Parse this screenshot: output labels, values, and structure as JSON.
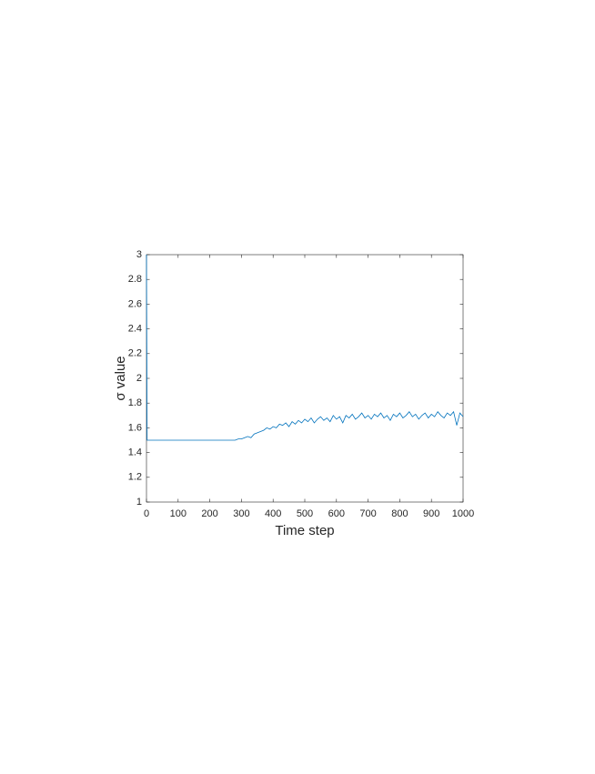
{
  "chart_data": {
    "type": "line",
    "xlabel": "Time step",
    "ylabel": "σ value",
    "x": [
      0,
      2,
      10,
      20,
      30,
      40,
      50,
      60,
      70,
      80,
      90,
      100,
      110,
      120,
      130,
      140,
      150,
      160,
      170,
      180,
      190,
      200,
      210,
      220,
      230,
      240,
      250,
      260,
      270,
      280,
      290,
      300,
      310,
      320,
      330,
      340,
      350,
      360,
      370,
      380,
      390,
      400,
      410,
      420,
      430,
      440,
      450,
      460,
      470,
      480,
      490,
      500,
      510,
      520,
      530,
      540,
      550,
      560,
      570,
      580,
      590,
      600,
      610,
      620,
      630,
      640,
      650,
      660,
      670,
      680,
      690,
      700,
      710,
      720,
      730,
      740,
      750,
      760,
      770,
      780,
      790,
      800,
      810,
      820,
      830,
      840,
      850,
      860,
      870,
      880,
      890,
      900,
      910,
      920,
      930,
      940,
      950,
      960,
      970,
      980,
      990,
      1000
    ],
    "values": [
      3,
      1.5,
      1.5,
      1.5,
      1.5,
      1.5,
      1.5,
      1.5,
      1.5,
      1.5,
      1.5,
      1.5,
      1.5,
      1.5,
      1.5,
      1.5,
      1.5,
      1.5,
      1.5,
      1.5,
      1.5,
      1.5,
      1.5,
      1.5,
      1.5,
      1.5,
      1.5,
      1.5,
      1.5,
      1.5,
      1.51,
      1.51,
      1.52,
      1.53,
      1.52,
      1.55,
      1.56,
      1.57,
      1.58,
      1.6,
      1.59,
      1.61,
      1.6,
      1.63,
      1.62,
      1.64,
      1.61,
      1.65,
      1.63,
      1.66,
      1.64,
      1.67,
      1.65,
      1.68,
      1.64,
      1.67,
      1.69,
      1.66,
      1.68,
      1.65,
      1.7,
      1.67,
      1.69,
      1.64,
      1.7,
      1.68,
      1.71,
      1.67,
      1.69,
      1.72,
      1.68,
      1.7,
      1.67,
      1.71,
      1.69,
      1.72,
      1.68,
      1.7,
      1.66,
      1.71,
      1.69,
      1.72,
      1.68,
      1.7,
      1.73,
      1.69,
      1.71,
      1.67,
      1.7,
      1.72,
      1.68,
      1.71,
      1.69,
      1.73,
      1.7,
      1.68,
      1.72,
      1.7,
      1.73,
      1.62,
      1.72,
      1.69
    ],
    "color": "#0072bd",
    "xlim": [
      0,
      1000
    ],
    "xticks": [
      0,
      100,
      200,
      300,
      400,
      500,
      600,
      700,
      800,
      900,
      1000
    ],
    "ylim": [
      1,
      3
    ],
    "yticks": [
      1,
      1.2,
      1.4,
      1.6,
      1.8,
      2,
      2.2,
      2.4,
      2.6,
      2.8,
      3
    ]
  }
}
